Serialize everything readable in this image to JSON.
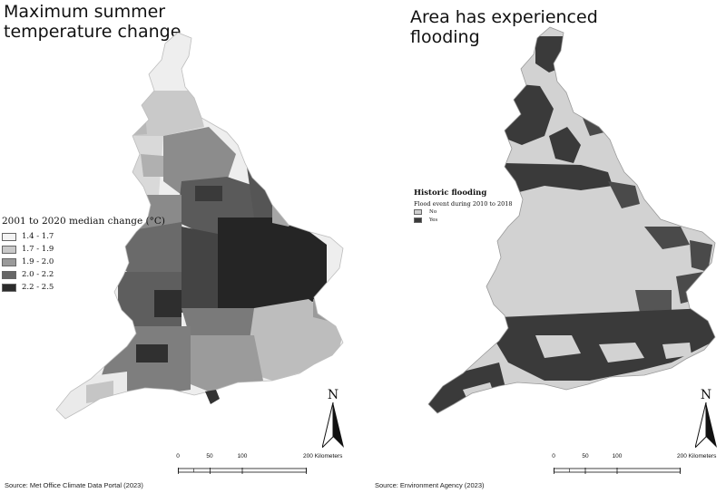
{
  "left": {
    "title": "Maximum summer temperature change",
    "legend_title": "2001 to 2020 median change (°C)",
    "legend_items": [
      {
        "label": "1.4 - 1.7",
        "color": "#f3f3f3"
      },
      {
        "label": "1.7 - 1.9",
        "color": "#c9c9c9"
      },
      {
        "label": "1.9 - 2.0",
        "color": "#9a9a9a"
      },
      {
        "label": "2.0 - 2.2",
        "color": "#666666"
      },
      {
        "label": "2.2 - 2.5",
        "color": "#2b2b2b"
      }
    ],
    "north_label": "N",
    "scale": {
      "ticks": [
        "0",
        "50",
        "100",
        "200 Kilometers"
      ]
    },
    "source": "Source: Met Office Climate Data Portal (2023)"
  },
  "right": {
    "title": "Area has experienced flooding",
    "legend_title": "Historic flooding",
    "legend_subtitle": "Flood event during 2010 to 2018",
    "legend_items": [
      {
        "label": "No",
        "color": "#cfcfcf"
      },
      {
        "label": "Yes",
        "color": "#3a3a3a"
      }
    ],
    "north_label": "N",
    "scale": {
      "ticks": [
        "0",
        "50",
        "100",
        "200 Kilometers"
      ]
    },
    "source": "Source: Environment Agency (2023)"
  }
}
